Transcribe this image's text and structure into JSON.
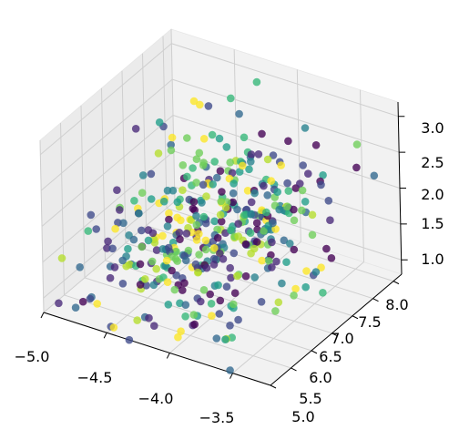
{
  "chart_data": {
    "type": "scatter",
    "projection": "3d",
    "title": "",
    "xlabel": "",
    "ylabel": "",
    "zlabel": "",
    "xlim": [
      -5.0,
      -3.2
    ],
    "ylim": [
      5.0,
      8.2
    ],
    "zlim": [
      0.8,
      3.2
    ],
    "x_ticks": [
      "−5.0",
      "−4.5",
      "−4.0",
      "−3.5"
    ],
    "y_ticks": [
      "5.0",
      "5.5",
      "6.0",
      "6.5",
      "7.0",
      "7.5",
      "8.0"
    ],
    "z_ticks": [
      "1.0",
      "1.5",
      "2.0",
      "2.5",
      "3.0"
    ],
    "grid": true,
    "pane_color": "#f2f2f2",
    "colormap": "viridis",
    "point_count": 420
  }
}
